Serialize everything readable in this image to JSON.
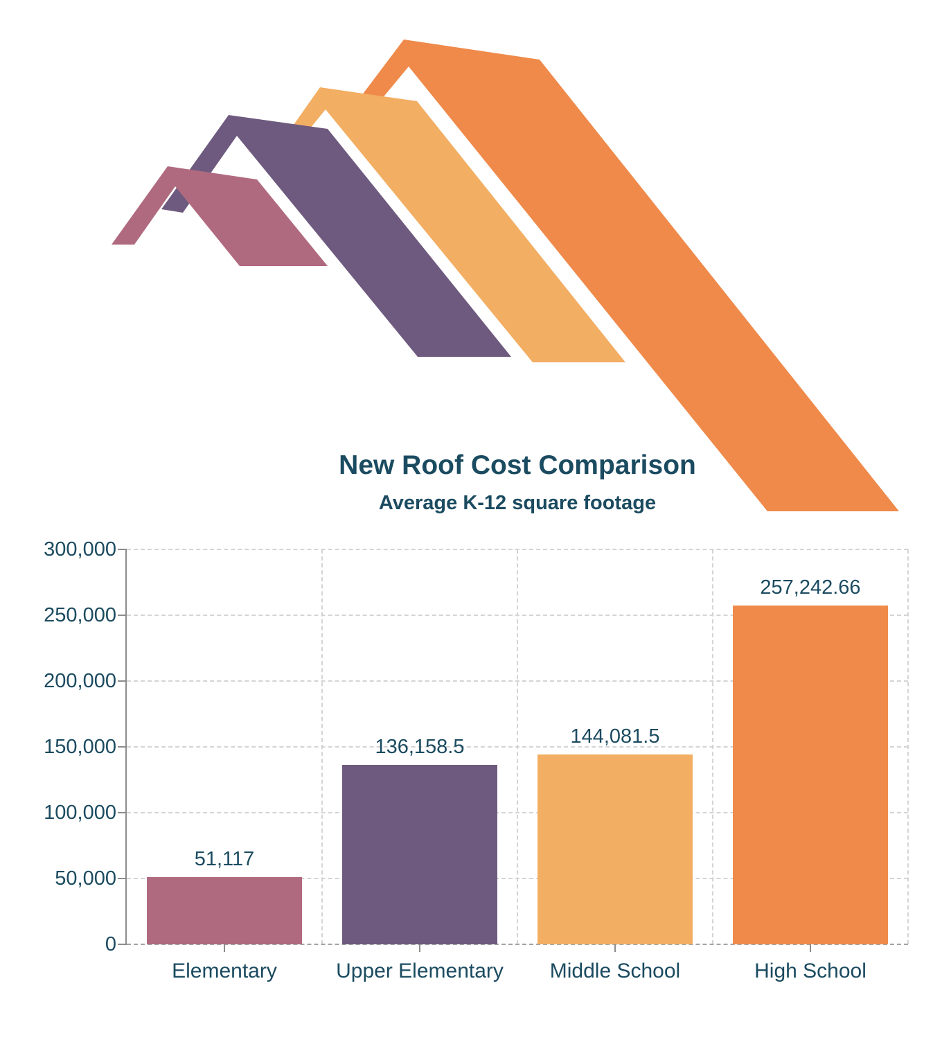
{
  "chart_data": {
    "type": "bar",
    "title": "New Roof Cost Comparison",
    "subtitle": "Average K-12 square footage",
    "categories": [
      "Elementary",
      "Upper Elementary",
      "Middle School",
      "High School"
    ],
    "values": [
      51117,
      136158.5,
      144081.5,
      257242.66
    ],
    "value_labels": [
      "51,117",
      "136,158.5",
      "144,081.5",
      "257,242.66"
    ],
    "bar_colors": [
      "#b06a7f",
      "#6e5a7e",
      "#f2ae63",
      "#ef8a4b"
    ],
    "ylim": [
      0,
      300000
    ],
    "yticks": [
      0,
      50000,
      100000,
      150000,
      200000,
      250000,
      300000
    ],
    "ytick_labels": [
      "0",
      "50,000",
      "100,000",
      "150,000",
      "200,000",
      "250,000",
      "300,000"
    ],
    "xlabel": "",
    "ylabel": "",
    "grid": {
      "horizontal": "dashed",
      "vertical": "dashed"
    },
    "legend": "none"
  },
  "logo": {
    "description": "four overlapping stylized roof silhouettes",
    "shape_names": [
      "roof-mauve",
      "roof-purple",
      "roof-yellow",
      "roof-orange"
    ]
  },
  "style": {
    "text_color": "#1b4b60",
    "axis_color": "#8c8c8c",
    "grid_color": "#d4d4d4",
    "baseline_color": "#a3a3a3",
    "background_color": "#ffffff"
  }
}
